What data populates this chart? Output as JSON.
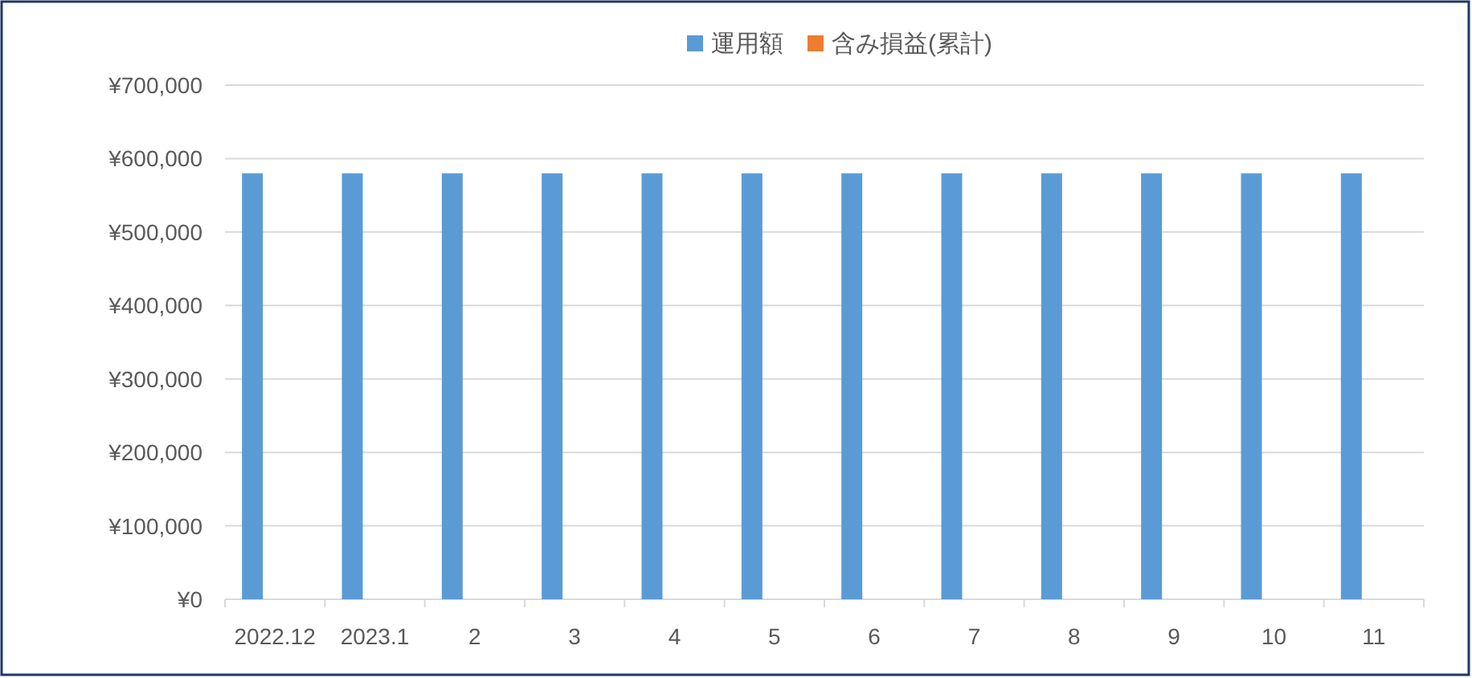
{
  "chart_data": {
    "type": "bar",
    "categories": [
      "2022.12",
      "2023.1",
      "2",
      "3",
      "4",
      "5",
      "6",
      "7",
      "8",
      "9",
      "10",
      "11"
    ],
    "series": [
      {
        "name": "運用額",
        "color": "#5b9bd5",
        "values": [
          580000,
          580000,
          580000,
          580000,
          580000,
          580000,
          580000,
          580000,
          580000,
          580000,
          580000,
          580000
        ]
      },
      {
        "name": "含み損益(累計)",
        "color": "#ed7d31",
        "values": [
          0,
          0,
          0,
          0,
          0,
          0,
          0,
          0,
          0,
          0,
          0,
          0
        ]
      }
    ],
    "ylim": [
      0,
      700000
    ],
    "yticks": [
      {
        "value": 0,
        "label": "¥0"
      },
      {
        "value": 100000,
        "label": "¥100,000"
      },
      {
        "value": 200000,
        "label": "¥200,000"
      },
      {
        "value": 300000,
        "label": "¥300,000"
      },
      {
        "value": 400000,
        "label": "¥400,000"
      },
      {
        "value": 500000,
        "label": "¥500,000"
      },
      {
        "value": 600000,
        "label": "¥600,000"
      },
      {
        "value": 700000,
        "label": "¥700,000"
      }
    ],
    "grid": "y",
    "legend": "top"
  }
}
